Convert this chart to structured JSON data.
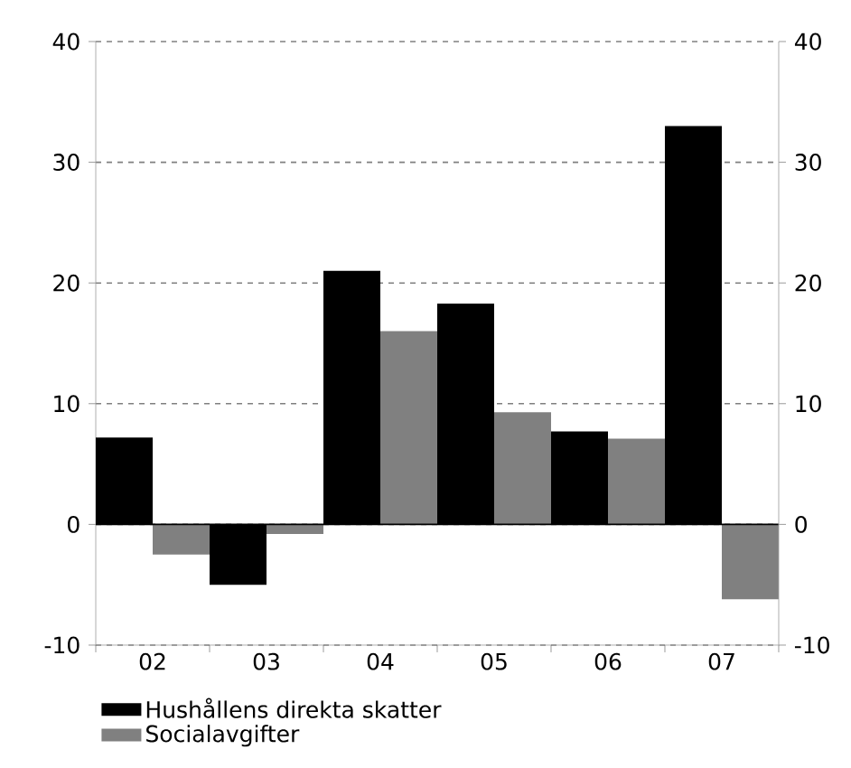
{
  "chart_data": {
    "type": "bar",
    "categories": [
      "02",
      "03",
      "04",
      "05",
      "06",
      "07"
    ],
    "series": [
      {
        "name": "Hushållens direkta skatter",
        "color": "#000000",
        "values": [
          7.2,
          -5,
          21,
          18.3,
          7.7,
          33
        ]
      },
      {
        "name": "Socialavgifter",
        "color": "#808080",
        "values": [
          -2.5,
          -0.8,
          16,
          9.3,
          7.1,
          -6.2
        ]
      }
    ],
    "ylim": [
      -10,
      40
    ],
    "yticks": [
      -10,
      0,
      10,
      20,
      30,
      40
    ],
    "y2lim": [
      -10,
      40
    ],
    "y2ticks": [
      -10,
      0,
      10,
      20,
      30,
      40
    ],
    "grid": "y",
    "legend": "bottom"
  }
}
